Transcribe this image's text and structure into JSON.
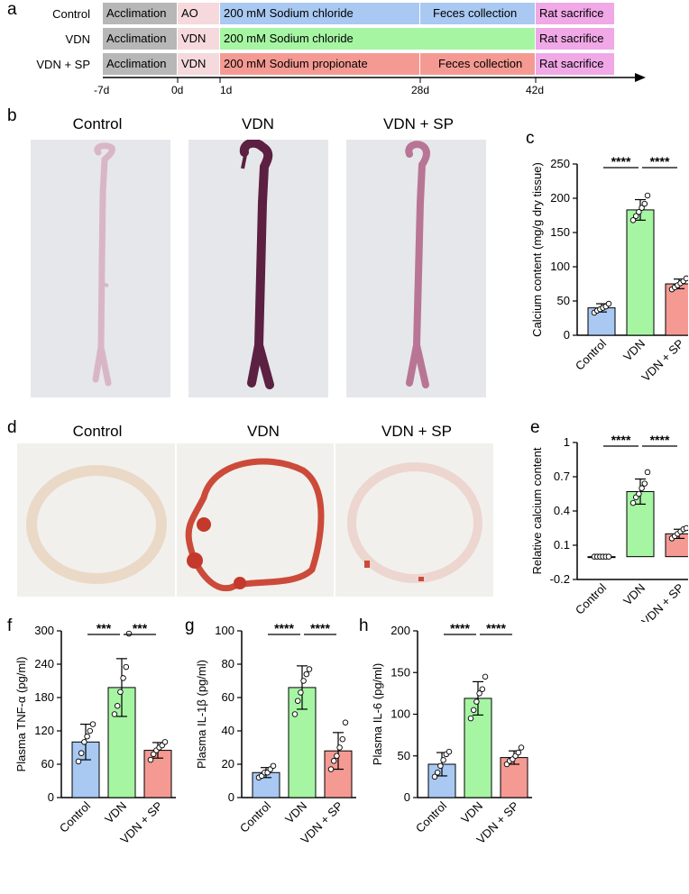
{
  "panels": {
    "a": "a",
    "b": "b",
    "c": "c",
    "d": "d",
    "e": "e",
    "f": "f",
    "g": "g",
    "h": "h"
  },
  "timeline": {
    "groups": [
      {
        "label": "Control",
        "segments": [
          {
            "text": "Acclimation",
            "color": "#b7b7b7"
          },
          {
            "text": "AO",
            "color": "#f6d9dc"
          },
          {
            "text": "200 mM Sodium chloride",
            "color": "#a9c8f2"
          },
          {
            "text": "Feces collection",
            "color": "#a9c8f2"
          },
          {
            "text": "Rat sacrifice",
            "color": "#f0a8e6"
          }
        ]
      },
      {
        "label": "VDN",
        "segments": [
          {
            "text": "Acclimation",
            "color": "#b7b7b7"
          },
          {
            "text": "VDN",
            "color": "#f6d9dc"
          },
          {
            "text": "200 mM Sodium chloride",
            "color": "#a6f5a3"
          },
          {
            "text": "",
            "color": "#a6f5a3"
          },
          {
            "text": "Rat sacrifice",
            "color": "#f0a8e6"
          }
        ]
      },
      {
        "label": "VDN + SP",
        "segments": [
          {
            "text": "Acclimation",
            "color": "#b7b7b7"
          },
          {
            "text": "VDN",
            "color": "#f6d9dc"
          },
          {
            "text": "200 mM Sodium propionate",
            "color": "#f49a93"
          },
          {
            "text": "Feces collection",
            "color": "#f49a93"
          },
          {
            "text": "Rat sacrifice",
            "color": "#f0a8e6"
          }
        ]
      }
    ],
    "ticks": [
      "-7d",
      "0d",
      "1d",
      "28d",
      "42d"
    ]
  },
  "photos": {
    "titles": [
      "Control",
      "VDN",
      "VDN + SP"
    ]
  },
  "histology": {
    "titles": [
      "Control",
      "VDN",
      "VDN + SP"
    ]
  },
  "colors": {
    "control": "#a9c8f2",
    "vdn": "#a6f5a3",
    "vdnsp": "#f49a93"
  },
  "chart_data": [
    {
      "id": "c",
      "type": "bar",
      "categories": [
        "Control",
        "VDN",
        "VDN + SP"
      ],
      "values": [
        40,
        183,
        75
      ],
      "errors": [
        6,
        15,
        7
      ],
      "points": [
        [
          33,
          36,
          38,
          40,
          42,
          46
        ],
        [
          168,
          174,
          180,
          186,
          192,
          204
        ],
        [
          67,
          70,
          73,
          76,
          79,
          83
        ]
      ],
      "ylabel": "Calcium content (mg/g dry tissue)",
      "ylim": [
        0,
        250
      ],
      "yticks": [
        0,
        50,
        100,
        150,
        200,
        250
      ],
      "significance": [
        {
          "from": 0,
          "to": 1,
          "label": "****"
        },
        {
          "from": 1,
          "to": 2,
          "label": "****"
        }
      ]
    },
    {
      "id": "e",
      "type": "bar",
      "categories": [
        "Control",
        "VDN",
        "VDN + SP"
      ],
      "values": [
        0.0,
        0.57,
        0.2
      ],
      "errors": [
        0.005,
        0.11,
        0.04
      ],
      "points": [
        [
          0.0,
          0.0,
          0.0,
          0.0,
          0.0,
          0.0
        ],
        [
          0.47,
          0.52,
          0.55,
          0.6,
          0.64,
          0.74
        ],
        [
          0.16,
          0.18,
          0.2,
          0.22,
          0.24,
          0.25
        ]
      ],
      "ylabel": "Relative calcium content",
      "ylim": [
        -0.2,
        1.0
      ],
      "yticks": [
        -0.2,
        0.1,
        0.4,
        0.7,
        1.0
      ],
      "significance": [
        {
          "from": 0,
          "to": 1,
          "label": "****"
        },
        {
          "from": 1,
          "to": 2,
          "label": "****"
        }
      ]
    },
    {
      "id": "f",
      "type": "bar",
      "categories": [
        "Control",
        "VDN",
        "VDN + SP"
      ],
      "values": [
        100,
        198,
        85
      ],
      "errors": [
        32,
        52,
        14
      ],
      "points": [
        [
          65,
          80,
          100,
          110,
          120,
          132
        ],
        [
          150,
          165,
          190,
          215,
          235,
          295
        ],
        [
          68,
          78,
          85,
          90,
          94,
          100
        ]
      ],
      "ylabel": "Plasma TNF-α (pg/ml)",
      "ylim": [
        0,
        300
      ],
      "yticks": [
        0,
        60,
        120,
        180,
        240,
        300
      ],
      "significance": [
        {
          "from": 0,
          "to": 1,
          "label": "***"
        },
        {
          "from": 1,
          "to": 2,
          "label": "***"
        }
      ]
    },
    {
      "id": "g",
      "type": "bar",
      "categories": [
        "Control",
        "VDN",
        "VDN + SP"
      ],
      "values": [
        15,
        66,
        28
      ],
      "errors": [
        3,
        13,
        11
      ],
      "points": [
        [
          12,
          13,
          15,
          15,
          17,
          19
        ],
        [
          50,
          58,
          63,
          70,
          74,
          77
        ],
        [
          17,
          22,
          25,
          30,
          35,
          45
        ]
      ],
      "ylabel": "Plasma IL-1β (pg/ml)",
      "ylim": [
        0,
        100
      ],
      "yticks": [
        0,
        20,
        40,
        60,
        80,
        100
      ],
      "significance": [
        {
          "from": 0,
          "to": 1,
          "label": "****"
        },
        {
          "from": 1,
          "to": 2,
          "label": "****"
        }
      ]
    },
    {
      "id": "h",
      "type": "bar",
      "categories": [
        "Control",
        "VDN",
        "VDN + SP"
      ],
      "values": [
        40,
        119,
        48
      ],
      "errors": [
        14,
        20,
        8
      ],
      "points": [
        [
          25,
          30,
          38,
          45,
          52,
          55
        ],
        [
          95,
          105,
          115,
          125,
          130,
          145
        ],
        [
          40,
          44,
          46,
          50,
          54,
          60
        ]
      ],
      "ylabel": "Plasma IL-6 (pg/ml)",
      "ylim": [
        0,
        200
      ],
      "yticks": [
        0,
        50,
        100,
        150,
        200
      ],
      "significance": [
        {
          "from": 0,
          "to": 1,
          "label": "****"
        },
        {
          "from": 1,
          "to": 2,
          "label": "****"
        }
      ]
    }
  ]
}
